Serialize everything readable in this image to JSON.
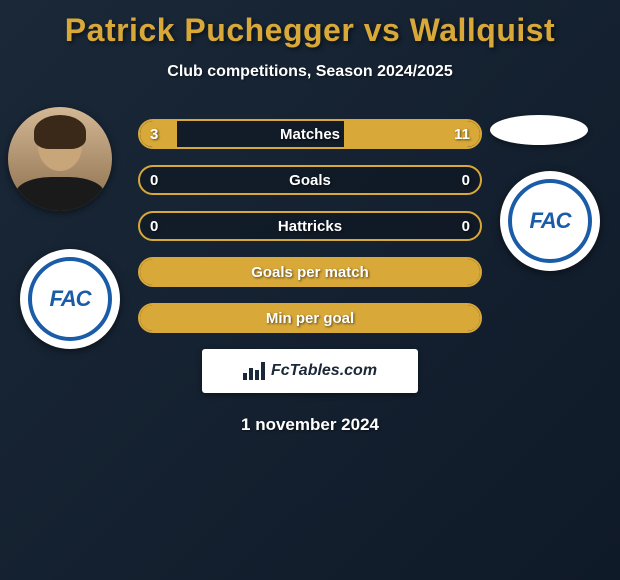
{
  "title": "Patrick Puchegger vs Wallquist",
  "subtitle": "Club competitions, Season 2024/2025",
  "date": "1 november 2024",
  "brand": "FcTables.com",
  "club_badge_text": "FAC",
  "colors": {
    "accent": "#d8a838",
    "background_start": "#1a2838",
    "background_end": "#0f1a28",
    "club_blue": "#1a5ca8",
    "white": "#ffffff"
  },
  "typography": {
    "title_fontsize": 32,
    "subtitle_fontsize": 16,
    "stat_label_fontsize": 15,
    "date_fontsize": 17
  },
  "stats": [
    {
      "label": "Matches",
      "left_value": "3",
      "right_value": "11",
      "left_fill_pct": 11,
      "right_fill_pct": 40,
      "full": false
    },
    {
      "label": "Goals",
      "left_value": "0",
      "right_value": "0",
      "left_fill_pct": 0,
      "right_fill_pct": 0,
      "full": false
    },
    {
      "label": "Hattricks",
      "left_value": "0",
      "right_value": "0",
      "left_fill_pct": 0,
      "right_fill_pct": 0,
      "full": false
    },
    {
      "label": "Goals per match",
      "left_value": "",
      "right_value": "",
      "left_fill_pct": 0,
      "right_fill_pct": 0,
      "full": true
    },
    {
      "label": "Min per goal",
      "left_value": "",
      "right_value": "",
      "left_fill_pct": 0,
      "right_fill_pct": 0,
      "full": true
    }
  ]
}
